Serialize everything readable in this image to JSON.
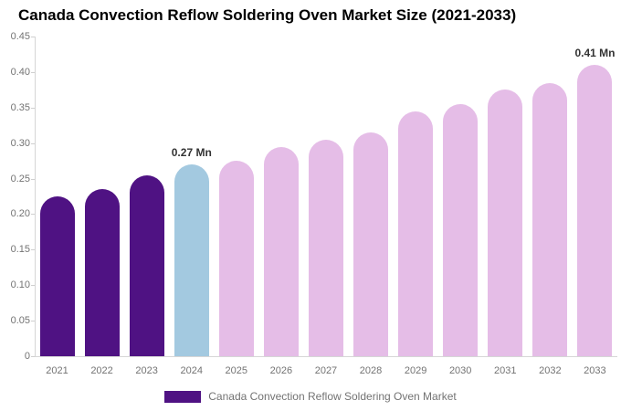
{
  "title": "Canada Convection Reflow Soldering Oven Market Size (2021-2033)",
  "legend": {
    "label": "Canada Convection Reflow Soldering Oven Market",
    "swatch_color": "#4F1283"
  },
  "colors": {
    "historical_bar": "#4F1283",
    "current_year_bar": "#A3C9E0",
    "forecast_bar": "#E5BDE7",
    "axis_line": "#d6d6d6",
    "tick_label": "#737373",
    "annotation_text": "#333333",
    "title_text": "#000000"
  },
  "chart_data": {
    "type": "bar",
    "title": "Canada Convection Reflow Soldering Oven Market Size (2021-2033)",
    "xlabel": "",
    "ylabel": "",
    "unit": "Mn",
    "categories": [
      "2021",
      "2022",
      "2023",
      "2024",
      "2025",
      "2026",
      "2027",
      "2028",
      "2029",
      "2030",
      "2031",
      "2032",
      "2033"
    ],
    "values": [
      0.225,
      0.235,
      0.255,
      0.27,
      0.275,
      0.295,
      0.305,
      0.315,
      0.345,
      0.355,
      0.375,
      0.385,
      0.41
    ],
    "bar_colors": [
      "#4F1283",
      "#4F1283",
      "#4F1283",
      "#A3C9E0",
      "#E5BDE7",
      "#E5BDE7",
      "#E5BDE7",
      "#E5BDE7",
      "#E5BDE7",
      "#E5BDE7",
      "#E5BDE7",
      "#E5BDE7",
      "#E5BDE7"
    ],
    "ylim": [
      0,
      0.45
    ],
    "y_ticks": [
      {
        "value": 0.45,
        "label": "0.45"
      },
      {
        "value": 0.4,
        "label": "0.40"
      },
      {
        "value": 0.35,
        "label": "0.35"
      },
      {
        "value": 0.3,
        "label": "0.30"
      },
      {
        "value": 0.25,
        "label": "0.25"
      },
      {
        "value": 0.2,
        "label": "0.20"
      },
      {
        "value": 0.15,
        "label": "0.15"
      },
      {
        "value": 0.1,
        "label": "0.10"
      },
      {
        "value": 0.05,
        "label": "0.05"
      },
      {
        "value": 0.0,
        "label": "0"
      }
    ],
    "annotations": [
      {
        "category": "2024",
        "text": "0.27 Mn"
      },
      {
        "category": "2033",
        "text": "0.41 Mn"
      }
    ],
    "grid": false,
    "legend_position": "bottom",
    "legend_entries": [
      "Canada Convection Reflow Soldering Oven Market"
    ]
  }
}
